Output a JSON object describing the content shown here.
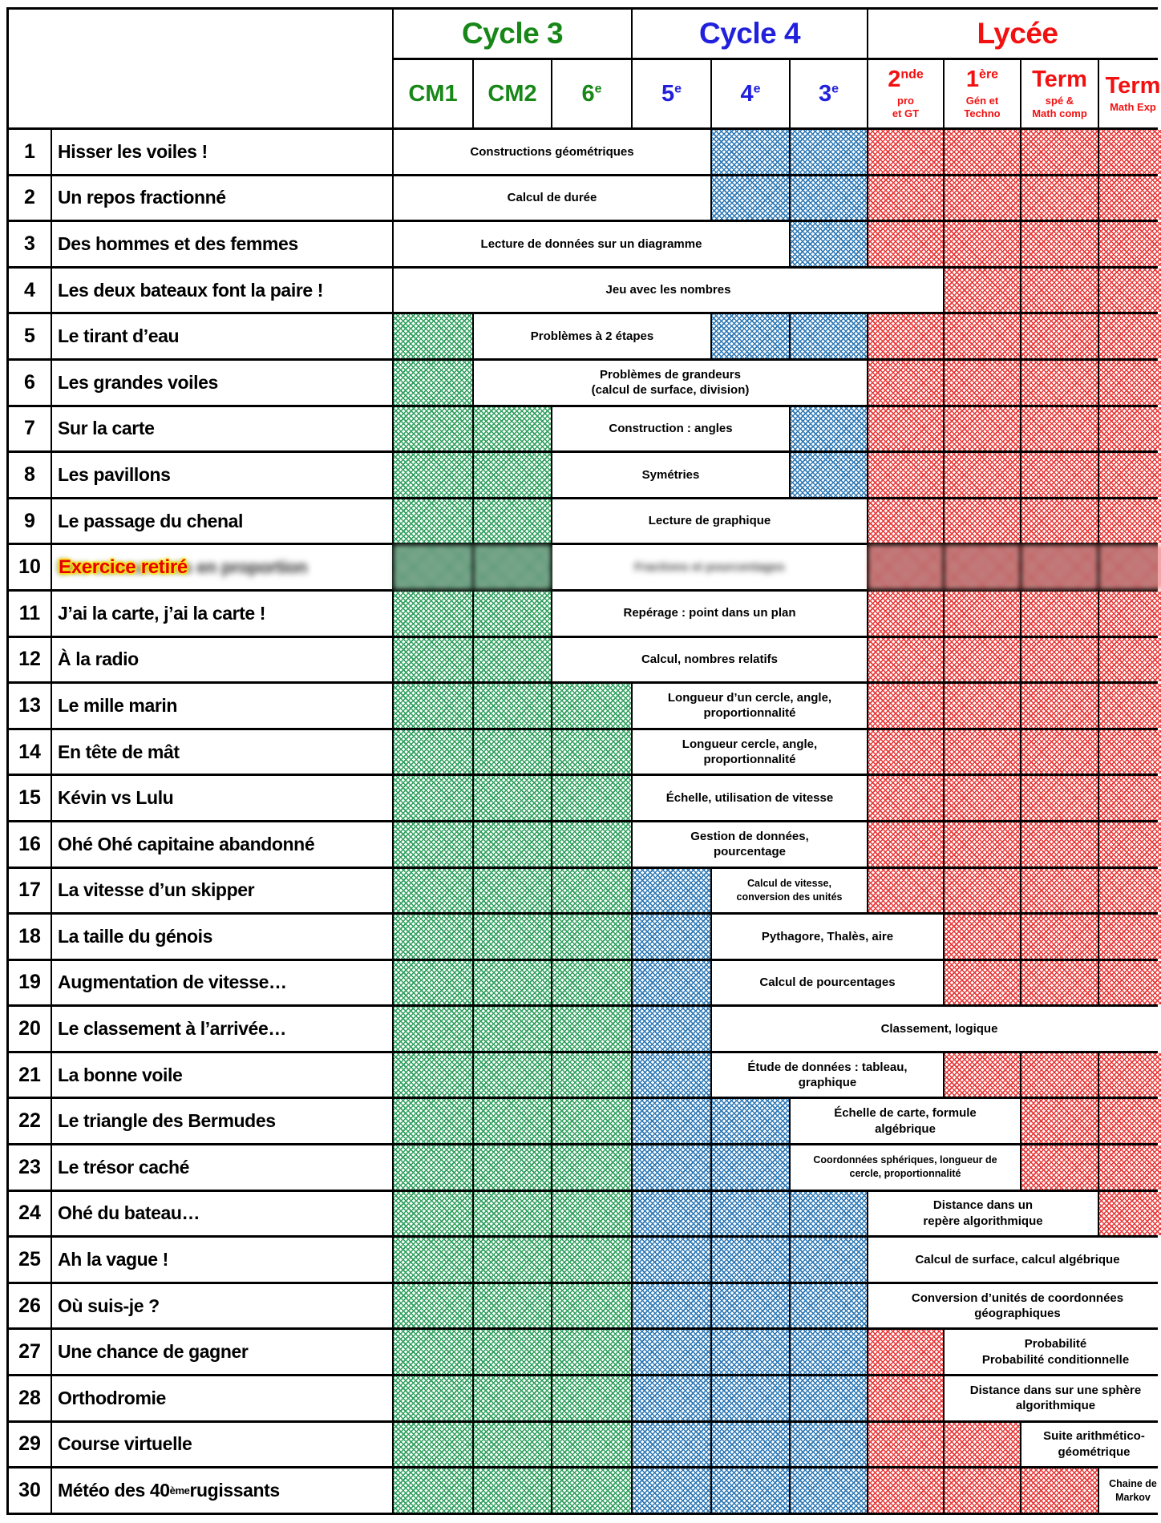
{
  "colors": {
    "green": "#178717",
    "blue": "#2121dd",
    "red": "#f21111",
    "hatch_green": "#2fa05e",
    "hatch_blue": "#2d78b5",
    "hatch_red": "#e93838"
  },
  "header": {
    "cycles": [
      {
        "label": "Cycle 3",
        "span": 3,
        "color": "green"
      },
      {
        "label": "Cycle 4",
        "span": 3,
        "color": "blue"
      },
      {
        "label": "Lycée",
        "span": 4,
        "color": "red"
      }
    ],
    "classes": [
      {
        "label": "CM1",
        "sup": "",
        "lines": [],
        "color": "green"
      },
      {
        "label": "CM2",
        "sup": "",
        "lines": [],
        "color": "green"
      },
      {
        "label": "6",
        "sup": "e",
        "lines": [],
        "color": "green"
      },
      {
        "label": "5",
        "sup": "e",
        "lines": [],
        "color": "blue"
      },
      {
        "label": "4",
        "sup": "e",
        "lines": [],
        "color": "blue"
      },
      {
        "label": "3",
        "sup": "e",
        "lines": [],
        "color": "blue"
      },
      {
        "label": "2",
        "sup": "nde",
        "lines": [
          "pro",
          "et GT"
        ],
        "color": "red"
      },
      {
        "label": "1",
        "sup": "ère",
        "lines": [
          "Gén et",
          "Techno"
        ],
        "color": "red"
      },
      {
        "label": "Term",
        "sup": "",
        "lines": [
          "spé &",
          "Math comp"
        ],
        "color": "red"
      },
      {
        "label": "Term",
        "sup": "",
        "lines": [
          "Math Exp"
        ],
        "color": "red"
      }
    ]
  },
  "retired_overlay": "Exercice retiré",
  "rows": [
    {
      "num": "1",
      "title": "Hisser les voiles !",
      "cells": [
        {
          "t": "txt",
          "n": 4,
          "s": "Constructions géométriques"
        },
        {
          "t": "b",
          "n": 2
        },
        {
          "t": "r",
          "n": 4
        }
      ]
    },
    {
      "num": "2",
      "title": "Un repos fractionné",
      "cells": [
        {
          "t": "txt",
          "n": 4,
          "s": "Calcul de durée"
        },
        {
          "t": "b",
          "n": 2
        },
        {
          "t": "r",
          "n": 4
        }
      ]
    },
    {
      "num": "3",
      "title": "Des hommes et des femmes",
      "cells": [
        {
          "t": "txt",
          "n": 5,
          "s": "Lecture de données sur un diagramme"
        },
        {
          "t": "b",
          "n": 1
        },
        {
          "t": "r",
          "n": 4
        }
      ]
    },
    {
      "num": "4",
      "title": "Les deux bateaux font la paire !",
      "cells": [
        {
          "t": "txt",
          "n": 7,
          "s": "Jeu avec les nombres"
        },
        {
          "t": "r",
          "n": 3
        }
      ]
    },
    {
      "num": "5",
      "title": "Le tirant d’eau",
      "cells": [
        {
          "t": "g",
          "n": 1
        },
        {
          "t": "txt",
          "n": 3,
          "s": "Problèmes à 2 étapes"
        },
        {
          "t": "b",
          "n": 2
        },
        {
          "t": "r",
          "n": 4
        }
      ]
    },
    {
      "num": "6",
      "title": "Les grandes voiles",
      "cells": [
        {
          "t": "g",
          "n": 1
        },
        {
          "t": "txt",
          "n": 5,
          "s": "Problèmes de grandeurs\n(calcul de surface, division)"
        },
        {
          "t": "r",
          "n": 4
        }
      ]
    },
    {
      "num": "7",
      "title": "Sur la carte",
      "cells": [
        {
          "t": "g",
          "n": 2
        },
        {
          "t": "txt",
          "n": 3,
          "s": "Construction : angles"
        },
        {
          "t": "b",
          "n": 1
        },
        {
          "t": "r",
          "n": 4
        }
      ]
    },
    {
      "num": "8",
      "title": "Les pavillons",
      "cells": [
        {
          "t": "g",
          "n": 2
        },
        {
          "t": "txt",
          "n": 3,
          "s": "Symétries"
        },
        {
          "t": "b",
          "n": 1
        },
        {
          "t": "r",
          "n": 4
        }
      ]
    },
    {
      "num": "9",
      "title": "Le passage du chenal",
      "cells": [
        {
          "t": "g",
          "n": 2
        },
        {
          "t": "txt",
          "n": 4,
          "s": "Lecture de graphique"
        },
        {
          "t": "r",
          "n": 4
        }
      ]
    },
    {
      "num": "10",
      "title": "Des concurrents en proportion",
      "redacted": true,
      "cells": [
        {
          "t": "g",
          "n": 2
        },
        {
          "t": "txt",
          "n": 4,
          "s": "Fractions et pourcentages"
        },
        {
          "t": "r",
          "n": 4
        }
      ]
    },
    {
      "num": "11",
      "title": "J’ai la carte, j’ai la carte !",
      "cells": [
        {
          "t": "g",
          "n": 2
        },
        {
          "t": "txt",
          "n": 4,
          "s": "Repérage : point dans un plan"
        },
        {
          "t": "r",
          "n": 4
        }
      ]
    },
    {
      "num": "12",
      "title": "À la radio",
      "cells": [
        {
          "t": "g",
          "n": 2
        },
        {
          "t": "txt",
          "n": 4,
          "s": "Calcul, nombres relatifs"
        },
        {
          "t": "r",
          "n": 4
        }
      ]
    },
    {
      "num": "13",
      "title": "Le mille marin",
      "cells": [
        {
          "t": "g",
          "n": 3
        },
        {
          "t": "txt",
          "n": 3,
          "s": "Longueur d’un cercle, angle,\nproportionnalité"
        },
        {
          "t": "r",
          "n": 4
        }
      ]
    },
    {
      "num": "14",
      "title": "En tête de mât",
      "cells": [
        {
          "t": "g",
          "n": 3
        },
        {
          "t": "txt",
          "n": 3,
          "s": "Longueur cercle, angle,\nproportionnalité"
        },
        {
          "t": "r",
          "n": 4
        }
      ]
    },
    {
      "num": "15",
      "title": "Kévin vs Lulu",
      "cells": [
        {
          "t": "g",
          "n": 3
        },
        {
          "t": "txt",
          "n": 3,
          "s": "Échelle, utilisation de vitesse"
        },
        {
          "t": "r",
          "n": 4
        }
      ]
    },
    {
      "num": "16",
      "title": "Ohé Ohé capitaine abandonné",
      "cells": [
        {
          "t": "g",
          "n": 3
        },
        {
          "t": "txt",
          "n": 3,
          "s": "Gestion de données,\npourcentage"
        },
        {
          "t": "r",
          "n": 4
        }
      ]
    },
    {
      "num": "17",
      "title": "La vitesse d’un skipper",
      "cells": [
        {
          "t": "g",
          "n": 3
        },
        {
          "t": "b",
          "n": 1
        },
        {
          "t": "txt",
          "n": 2,
          "s": "Calcul de vitesse,\nconversion des unités",
          "small": true
        },
        {
          "t": "r",
          "n": 4
        }
      ]
    },
    {
      "num": "18",
      "title": "La taille du génois",
      "cells": [
        {
          "t": "g",
          "n": 3
        },
        {
          "t": "b",
          "n": 1
        },
        {
          "t": "txt",
          "n": 3,
          "s": "Pythagore, Thalès, aire"
        },
        {
          "t": "r",
          "n": 3
        }
      ]
    },
    {
      "num": "19",
      "title": "Augmentation de vitesse…",
      "cells": [
        {
          "t": "g",
          "n": 3
        },
        {
          "t": "b",
          "n": 1
        },
        {
          "t": "txt",
          "n": 3,
          "s": "Calcul de pourcentages"
        },
        {
          "t": "r",
          "n": 3
        }
      ]
    },
    {
      "num": "20",
      "title": "Le classement à l’arrivée…",
      "cells": [
        {
          "t": "g",
          "n": 3
        },
        {
          "t": "b",
          "n": 1
        },
        {
          "t": "txt",
          "n": 6,
          "s": "Classement, logique"
        }
      ]
    },
    {
      "num": "21",
      "title": "La bonne voile",
      "cells": [
        {
          "t": "g",
          "n": 3
        },
        {
          "t": "b",
          "n": 1
        },
        {
          "t": "txt",
          "n": 3,
          "s": "Étude de données : tableau,\ngraphique"
        },
        {
          "t": "r",
          "n": 3
        }
      ]
    },
    {
      "num": "22",
      "title": "Le triangle des Bermudes",
      "cells": [
        {
          "t": "g",
          "n": 3
        },
        {
          "t": "b",
          "n": 2
        },
        {
          "t": "txt",
          "n": 3,
          "s": "Échelle de carte, formule\nalgébrique"
        },
        {
          "t": "r",
          "n": 2
        }
      ]
    },
    {
      "num": "23",
      "title": "Le trésor caché",
      "cells": [
        {
          "t": "g",
          "n": 3
        },
        {
          "t": "b",
          "n": 2
        },
        {
          "t": "txt",
          "n": 3,
          "s": "Coordonnées sphériques, longueur de\ncercle, proportionnalité",
          "small": true
        },
        {
          "t": "r",
          "n": 2
        }
      ]
    },
    {
      "num": "24",
      "title": "Ohé du bateau…",
      "cells": [
        {
          "t": "g",
          "n": 3
        },
        {
          "t": "b",
          "n": 3
        },
        {
          "t": "txt",
          "n": 3,
          "s": "Distance dans un\nrepère algorithmique"
        },
        {
          "t": "r",
          "n": 1
        }
      ]
    },
    {
      "num": "25",
      "title": "Ah la vague !",
      "cells": [
        {
          "t": "g",
          "n": 3
        },
        {
          "t": "b",
          "n": 3
        },
        {
          "t": "txt",
          "n": 4,
          "s": "Calcul de surface, calcul algébrique"
        }
      ]
    },
    {
      "num": "26",
      "title": "Où suis-je ?",
      "cells": [
        {
          "t": "g",
          "n": 3
        },
        {
          "t": "b",
          "n": 3
        },
        {
          "t": "txt",
          "n": 4,
          "s": "Conversion d’unités de coordonnées\ngéographiques"
        }
      ]
    },
    {
      "num": "27",
      "title": "Une chance de gagner",
      "cells": [
        {
          "t": "g",
          "n": 3
        },
        {
          "t": "b",
          "n": 3
        },
        {
          "t": "r",
          "n": 1
        },
        {
          "t": "txt",
          "n": 3,
          "s": "Probabilité\nProbabilité conditionnelle"
        }
      ]
    },
    {
      "num": "28",
      "title": "Orthodromie",
      "cells": [
        {
          "t": "g",
          "n": 3
        },
        {
          "t": "b",
          "n": 3
        },
        {
          "t": "r",
          "n": 1
        },
        {
          "t": "txt",
          "n": 3,
          "s": "Distance dans sur une sphère\nalgorithmique"
        }
      ]
    },
    {
      "num": "29",
      "title": "Course virtuelle",
      "cells": [
        {
          "t": "g",
          "n": 3
        },
        {
          "t": "b",
          "n": 3
        },
        {
          "t": "r",
          "n": 2
        },
        {
          "t": "txt",
          "n": 2,
          "s": "Suite arithmético-\ngéométrique"
        }
      ]
    },
    {
      "num": "30",
      "title_parts": [
        {
          "t": "Météo des 40"
        },
        {
          "t": "ème",
          "sup": true
        },
        {
          "t": " rugissants"
        }
      ],
      "cells": [
        {
          "t": "g",
          "n": 3
        },
        {
          "t": "b",
          "n": 3
        },
        {
          "t": "r",
          "n": 3
        },
        {
          "t": "txt",
          "n": 1,
          "s": "Chaine de\nMarkov",
          "small": true
        }
      ]
    }
  ]
}
